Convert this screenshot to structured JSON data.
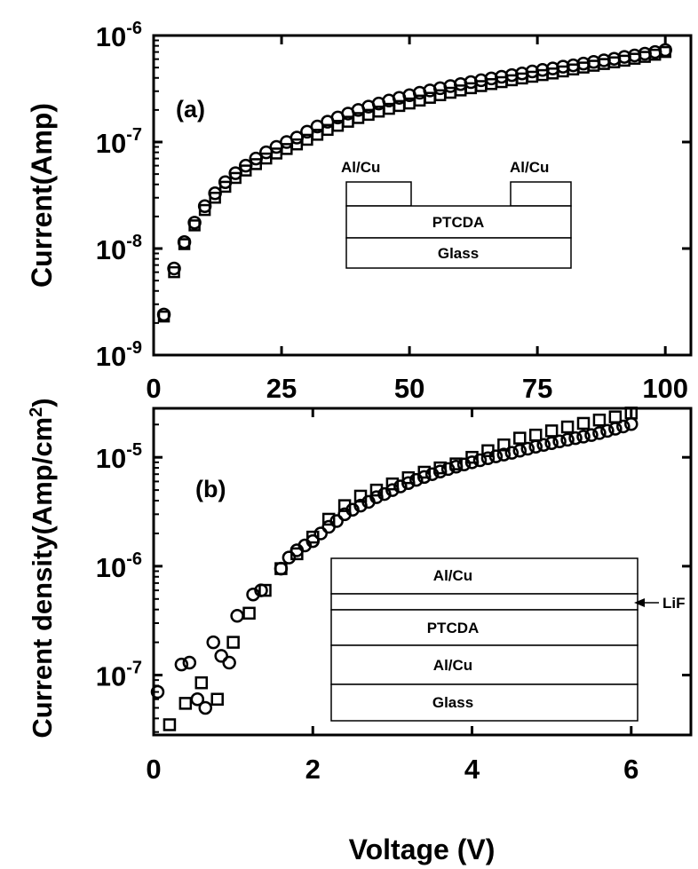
{
  "figure": {
    "xlabel": "Voltage (V)"
  },
  "chart_data": [
    {
      "type": "scatter",
      "panel_tag": "(a)",
      "ylabel": "Current(Amp)",
      "xlim": [
        0,
        105
      ],
      "ylim_log10": [
        -9,
        -6
      ],
      "yscale": "log",
      "x_ticks": [
        {
          "value": 0,
          "label": "0"
        },
        {
          "value": 25,
          "label": "25"
        },
        {
          "value": 50,
          "label": "50"
        },
        {
          "value": 75,
          "label": "75"
        },
        {
          "value": 100,
          "label": "100"
        }
      ],
      "y_ticks": [
        {
          "value": 1e-09,
          "base": "10",
          "exp": "-9"
        },
        {
          "value": 1e-08,
          "base": "10",
          "exp": "-8"
        },
        {
          "value": 1e-07,
          "base": "10",
          "exp": "-7"
        },
        {
          "value": 1e-06,
          "base": "10",
          "exp": "-6"
        }
      ],
      "series": [
        {
          "marker": "circle",
          "x": [
            2,
            4,
            6,
            8,
            10,
            12,
            14,
            16,
            18,
            20,
            22,
            24,
            26,
            28,
            30,
            32,
            34,
            36,
            38,
            40,
            42,
            44,
            46,
            48,
            50,
            52,
            54,
            56,
            58,
            60,
            62,
            64,
            66,
            68,
            70,
            72,
            74,
            76,
            78,
            80,
            82,
            84,
            86,
            88,
            90,
            92,
            94,
            96,
            98,
            100
          ],
          "y": [
            2.4e-09,
            6.5e-09,
            1.15e-08,
            1.75e-08,
            2.5e-08,
            3.3e-08,
            4.2e-08,
            5.1e-08,
            6e-08,
            7e-08,
            8e-08,
            9e-08,
            1e-07,
            1.1e-07,
            1.25e-07,
            1.4e-07,
            1.55e-07,
            1.7e-07,
            1.85e-07,
            2e-07,
            2.15e-07,
            2.3e-07,
            2.45e-07,
            2.6e-07,
            2.75e-07,
            2.9e-07,
            3.05e-07,
            3.2e-07,
            3.35e-07,
            3.5e-07,
            3.65e-07,
            3.8e-07,
            3.95e-07,
            4.1e-07,
            4.25e-07,
            4.4e-07,
            4.6e-07,
            4.75e-07,
            4.9e-07,
            5.1e-07,
            5.25e-07,
            5.45e-07,
            5.65e-07,
            5.85e-07,
            6.05e-07,
            6.3e-07,
            6.5e-07,
            6.75e-07,
            7e-07,
            7.3e-07
          ]
        },
        {
          "marker": "square",
          "x": [
            2,
            4,
            6,
            8,
            10,
            12,
            14,
            16,
            18,
            20,
            22,
            24,
            26,
            28,
            30,
            32,
            34,
            36,
            38,
            40,
            42,
            44,
            46,
            48,
            50,
            52,
            54,
            56,
            58,
            60,
            62,
            64,
            66,
            68,
            70,
            72,
            74,
            76,
            78,
            80,
            82,
            84,
            86,
            88,
            90,
            92,
            94,
            96,
            98,
            100
          ],
          "y": [
            2.3e-09,
            6e-09,
            1.1e-08,
            1.65e-08,
            2.3e-08,
            3e-08,
            3.8e-08,
            4.6e-08,
            5.4e-08,
            6.2e-08,
            7e-08,
            7.8e-08,
            8.6e-08,
            9.5e-08,
            1.05e-07,
            1.17e-07,
            1.3e-07,
            1.42e-07,
            1.55e-07,
            1.68e-07,
            1.8e-07,
            1.93e-07,
            2.05e-07,
            2.18e-07,
            2.3e-07,
            2.45e-07,
            2.6e-07,
            2.75e-07,
            2.9e-07,
            3.05e-07,
            3.2e-07,
            3.35e-07,
            3.5e-07,
            3.65e-07,
            3.8e-07,
            3.95e-07,
            4.1e-07,
            4.25e-07,
            4.4e-07,
            4.6e-07,
            4.8e-07,
            5e-07,
            5.2e-07,
            5.4e-07,
            5.6e-07,
            5.8e-07,
            6.05e-07,
            6.3e-07,
            6.6e-07,
            7e-07
          ]
        }
      ],
      "inset": {
        "contact_left": "Al/Cu",
        "contact_right": "Al/Cu",
        "layer_1": "PTCDA",
        "layer_2": "Glass"
      }
    },
    {
      "type": "scatter",
      "panel_tag": "(b)",
      "ylabel": "Current density(Amp/cm",
      "ylabel_sup": "2",
      "ylabel_close": ")",
      "xlim": [
        0,
        6.75
      ],
      "ylim_log10": [
        -7.55,
        -4.55
      ],
      "yscale": "log",
      "x_ticks": [
        {
          "value": 0,
          "label": "0"
        },
        {
          "value": 2,
          "label": "2"
        },
        {
          "value": 4,
          "label": "4"
        },
        {
          "value": 6,
          "label": "6"
        }
      ],
      "y_ticks": [
        {
          "value": 1e-07,
          "base": "10",
          "exp": "-7"
        },
        {
          "value": 1e-06,
          "base": "10",
          "exp": "-6"
        },
        {
          "value": 1e-05,
          "base": "10",
          "exp": "-5"
        }
      ],
      "series": [
        {
          "marker": "circle",
          "x": [
            0.05,
            0.35,
            0.45,
            0.55,
            0.65,
            0.75,
            0.85,
            0.95,
            1.05,
            1.25,
            1.35,
            1.6,
            1.7,
            1.8,
            1.9,
            2.0,
            2.1,
            2.2,
            2.3,
            2.4,
            2.5,
            2.6,
            2.7,
            2.8,
            2.9,
            3.0,
            3.1,
            3.2,
            3.3,
            3.4,
            3.5,
            3.6,
            3.7,
            3.8,
            3.9,
            4.0,
            4.1,
            4.2,
            4.3,
            4.4,
            4.5,
            4.6,
            4.7,
            4.8,
            4.9,
            5.0,
            5.1,
            5.2,
            5.3,
            5.4,
            5.5,
            5.6,
            5.7,
            5.8,
            5.9,
            6.0
          ],
          "y": [
            7e-08,
            1.25e-07,
            1.3e-07,
            6e-08,
            5e-08,
            2e-07,
            1.5e-07,
            1.3e-07,
            3.5e-07,
            5.5e-07,
            6e-07,
            9.5e-07,
            1.2e-06,
            1.4e-06,
            1.55e-06,
            1.7e-06,
            2e-06,
            2.3e-06,
            2.6e-06,
            3e-06,
            3.3e-06,
            3.6e-06,
            3.9e-06,
            4.3e-06,
            4.6e-06,
            5e-06,
            5.4e-06,
            5.8e-06,
            6.2e-06,
            6.6e-06,
            7e-06,
            7.4e-06,
            7.8e-06,
            8.2e-06,
            8.6e-06,
            9e-06,
            9.4e-06,
            9.8e-06,
            1.02e-05,
            1.06e-05,
            1.1e-05,
            1.15e-05,
            1.2e-05,
            1.25e-05,
            1.3e-05,
            1.35e-05,
            1.4e-05,
            1.45e-05,
            1.5e-05,
            1.55e-05,
            1.6e-05,
            1.67e-05,
            1.75e-05,
            1.83e-05,
            1.92e-05,
            2.02e-05
          ]
        },
        {
          "marker": "square",
          "x": [
            0.2,
            0.4,
            0.6,
            0.8,
            1.0,
            1.2,
            1.4,
            1.6,
            1.8,
            2.0,
            2.2,
            2.4,
            2.6,
            2.8,
            3.0,
            3.2,
            3.4,
            3.6,
            3.8,
            4.0,
            4.2,
            4.4,
            4.6,
            4.8,
            5.0,
            5.2,
            5.4,
            5.6,
            5.8,
            6.0
          ],
          "y": [
            3.5e-08,
            5.5e-08,
            8.5e-08,
            6e-08,
            2e-07,
            3.7e-07,
            6e-07,
            9.5e-07,
            1.3e-06,
            1.85e-06,
            2.7e-06,
            3.6e-06,
            4.4e-06,
            5e-06,
            5.7e-06,
            6.5e-06,
            7.3e-06,
            8e-06,
            8.7e-06,
            1e-05,
            1.15e-05,
            1.3e-05,
            1.5e-05,
            1.6e-05,
            1.75e-05,
            1.9e-05,
            2.05e-05,
            2.2e-05,
            2.35e-05,
            2.55e-05
          ]
        }
      ],
      "inset": {
        "layer_1": "Al/Cu",
        "lif_label": "LiF",
        "layer_3": "PTCDA",
        "layer_4": "Al/Cu",
        "layer_5": "Glass"
      }
    }
  ]
}
